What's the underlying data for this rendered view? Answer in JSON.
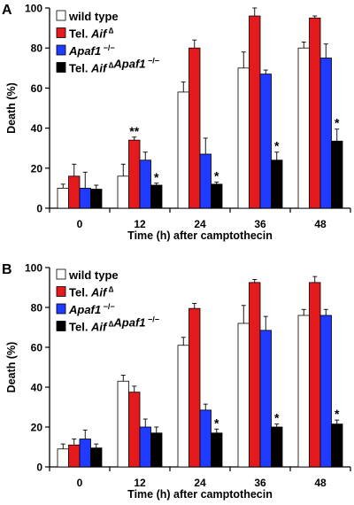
{
  "chart_data": [
    {
      "panel": "A",
      "type": "bar",
      "ylabel": "Death (%)",
      "xlabel": "Time (h) after camptothecin",
      "ylim": [
        0,
        100
      ],
      "yticks": [
        0,
        20,
        40,
        60,
        80,
        100
      ],
      "categories": [
        "0",
        "12",
        "24",
        "36",
        "48"
      ],
      "legend": {
        "placement": "top-left",
        "entries": [
          {
            "parts": [
              {
                "t": "wild type"
              }
            ]
          },
          {
            "parts": [
              {
                "t": "Tel. "
              },
              {
                "t": "Aif",
                "it": true
              },
              {
                "t": " ∆",
                "sup": true
              }
            ]
          },
          {
            "parts": [
              {
                "t": "Apaf1",
                "it": true
              },
              {
                "t": " −/−",
                "sup": true
              }
            ]
          },
          {
            "parts": [
              {
                "t": "Tel. "
              },
              {
                "t": "Aif",
                "it": true
              },
              {
                "t": " ∆",
                "sup": true
              },
              {
                "t": "Apaf1",
                "it": true
              },
              {
                "t": " −/−",
                "sup": true
              }
            ]
          }
        ]
      },
      "series": [
        {
          "color": "#ffffff",
          "values": [
            10,
            16,
            58,
            70,
            80
          ],
          "errors": [
            2,
            6,
            5,
            8,
            3
          ]
        },
        {
          "color": "#e41a1c",
          "values": [
            16,
            34,
            80,
            96,
            95
          ],
          "errors": [
            6,
            1.5,
            4,
            4,
            1
          ]
        },
        {
          "color": "#1f3bff",
          "values": [
            10,
            24,
            27,
            67,
            75
          ],
          "errors": [
            8,
            4,
            8,
            2,
            7
          ]
        },
        {
          "color": "#000000",
          "values": [
            9.5,
            11.5,
            12,
            24,
            33.5
          ],
          "errors": [
            2,
            1,
            1,
            4,
            6
          ]
        }
      ],
      "annotations": [
        {
          "text": "**",
          "category": "12",
          "series": 1
        },
        {
          "text": "*",
          "category": "12",
          "series": 3
        },
        {
          "text": "*",
          "category": "24",
          "series": 3
        },
        {
          "text": "*",
          "category": "36",
          "series": 3
        },
        {
          "text": "*",
          "category": "48",
          "series": 3
        }
      ]
    },
    {
      "panel": "B",
      "type": "bar",
      "ylabel": "Death (%)",
      "xlabel": "Time (h) after camptothecin",
      "ylim": [
        0,
        100
      ],
      "yticks": [
        0,
        20,
        40,
        60,
        80,
        100
      ],
      "categories": [
        "0",
        "12",
        "24",
        "36",
        "48"
      ],
      "legend": {
        "placement": "top-left",
        "entries": [
          {
            "parts": [
              {
                "t": "wild type"
              }
            ]
          },
          {
            "parts": [
              {
                "t": "Tel. "
              },
              {
                "t": "Aif",
                "it": true
              },
              {
                "t": " ∆",
                "sup": true
              }
            ]
          },
          {
            "parts": [
              {
                "t": "Apaf1",
                "it": true
              },
              {
                "t": " −/−",
                "sup": true
              }
            ]
          },
          {
            "parts": [
              {
                "t": "Tel. "
              },
              {
                "t": "Aif",
                "it": true
              },
              {
                "t": " ∆",
                "sup": true
              },
              {
                "t": "Apaf1",
                "it": true
              },
              {
                "t": " −/−",
                "sup": true
              }
            ]
          }
        ]
      },
      "series": [
        {
          "color": "#ffffff",
          "values": [
            9,
            43,
            61,
            72,
            76
          ],
          "errors": [
            2.5,
            3,
            4,
            9,
            3
          ]
        },
        {
          "color": "#e41a1c",
          "values": [
            11,
            37.5,
            79.5,
            92.5,
            92.5
          ],
          "errors": [
            3,
            3,
            2.5,
            1.5,
            3
          ]
        },
        {
          "color": "#1f3bff",
          "values": [
            14,
            20,
            28.5,
            68.5,
            76
          ],
          "errors": [
            4.5,
            4,
            3,
            7,
            3
          ]
        },
        {
          "color": "#000000",
          "values": [
            9.5,
            17,
            17,
            20,
            21.5
          ],
          "errors": [
            2,
            3,
            2,
            1.5,
            2
          ]
        }
      ],
      "annotations": [
        {
          "text": "*",
          "category": "24",
          "series": 3
        },
        {
          "text": "*",
          "category": "36",
          "series": 3
        },
        {
          "text": "*",
          "category": "48",
          "series": 3
        }
      ]
    }
  ]
}
